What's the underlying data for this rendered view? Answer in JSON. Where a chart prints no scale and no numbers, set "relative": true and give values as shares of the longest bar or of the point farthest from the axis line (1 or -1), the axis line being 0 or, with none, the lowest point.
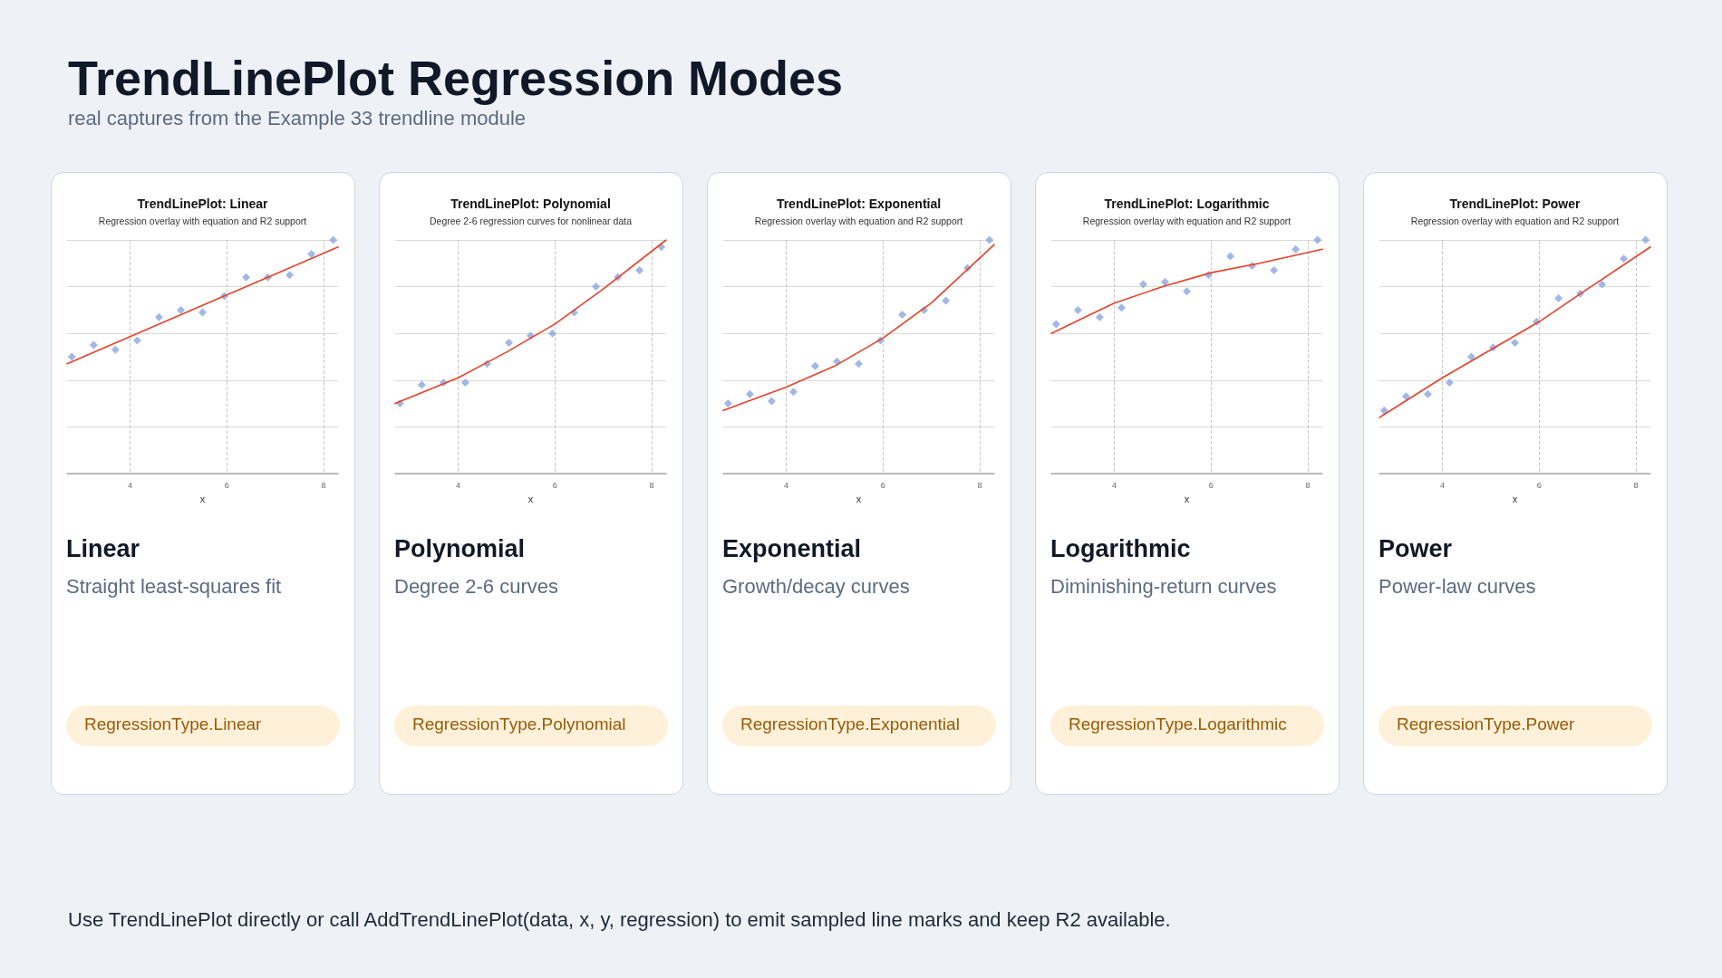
{
  "chart_data": [
    {
      "type": "other",
      "title": "TrendLinePlot Regression Modes",
      "subtitle": "real captures from the Example 33 trendline module",
      "annotations": [
        "Use TrendLinePlot directly or call AddTrendLinePlot(data, x, y, regression) to emit sampled line marks and keep R2 available."
      ]
    },
    {
      "type": "scatter",
      "title": "TrendLinePlot: Linear",
      "subtitle": "Regression overlay with equation and R2 support",
      "xlabel": "x",
      "relative": true,
      "xlim": [
        2.7,
        8.3
      ],
      "xticks": [
        4,
        6,
        8
      ],
      "grid": true,
      "x": [
        2.8,
        3.25,
        3.7,
        4.15,
        4.6,
        5.05,
        5.5,
        5.95,
        6.4,
        6.85,
        7.3,
        7.75,
        8.2
      ],
      "series": [
        {
          "color": "#8aa5e0",
          "marker": "diamond",
          "values": [
            0.5,
            0.55,
            0.53,
            0.57,
            0.67,
            0.7,
            0.69,
            0.76,
            0.84,
            0.84,
            0.85,
            0.94,
            1
          ]
        },
        {
          "type": "line",
          "color": "#e8402a",
          "marker": "none",
          "line_style": "solid",
          "x": [
            2.7,
            8.3
          ],
          "values": [
            0.47,
            0.97
          ]
        }
      ],
      "annotations": [
        "Linear",
        "Straight least-squares fit",
        "RegressionType.Linear"
      ]
    },
    {
      "type": "scatter",
      "title": "TrendLinePlot: Polynomial",
      "subtitle": "Degree 2-6 regression curves for nonlinear data",
      "xlabel": "x",
      "relative": true,
      "xlim": [
        2.7,
        8.3
      ],
      "xticks": [
        4,
        6,
        8
      ],
      "grid": true,
      "x": [
        2.8,
        3.25,
        3.7,
        4.15,
        4.6,
        5.05,
        5.5,
        5.95,
        6.4,
        6.85,
        7.3,
        7.75,
        8.2
      ],
      "series": [
        {
          "color": "#8aa5e0",
          "marker": "diamond",
          "values": [
            0.3,
            0.38,
            0.39,
            0.39,
            0.47,
            0.56,
            0.59,
            0.6,
            0.69,
            0.8,
            0.84,
            0.87,
            0.97
          ]
        },
        {
          "type": "line",
          "color": "#e8402a",
          "marker": "none",
          "line_style": "solid",
          "x": [
            2.7,
            4,
            5,
            6,
            7,
            8.3
          ],
          "values": [
            0.3,
            0.41,
            0.52,
            0.64,
            0.79,
            1
          ]
        }
      ],
      "annotations": [
        "Polynomial",
        "Degree 2-6 curves",
        "RegressionType.Polynomial"
      ]
    },
    {
      "type": "scatter",
      "title": "TrendLinePlot: Exponential",
      "subtitle": "Regression overlay with equation and R2 support",
      "xlabel": "x",
      "relative": true,
      "xlim": [
        2.7,
        8.3
      ],
      "xticks": [
        4,
        6,
        8
      ],
      "grid": true,
      "x": [
        2.8,
        3.25,
        3.7,
        4.15,
        4.6,
        5.05,
        5.5,
        5.95,
        6.4,
        6.85,
        7.3,
        7.75,
        8.2
      ],
      "series": [
        {
          "color": "#8aa5e0",
          "marker": "diamond",
          "values": [
            0.3,
            0.34,
            0.31,
            0.35,
            0.46,
            0.48,
            0.47,
            0.57,
            0.68,
            0.7,
            0.74,
            0.88,
            1
          ]
        },
        {
          "type": "line",
          "color": "#e8402a",
          "marker": "none",
          "line_style": "solid",
          "x": [
            2.7,
            4,
            5,
            6,
            7,
            8.3
          ],
          "values": [
            0.27,
            0.37,
            0.46,
            0.58,
            0.73,
            0.98
          ]
        }
      ],
      "annotations": [
        "Exponential",
        "Growth/decay curves",
        "RegressionType.Exponential"
      ]
    },
    {
      "type": "scatter",
      "title": "TrendLinePlot: Logarithmic",
      "subtitle": "Regression overlay with equation and R2 support",
      "xlabel": "x",
      "relative": true,
      "xlim": [
        2.7,
        8.3
      ],
      "xticks": [
        4,
        6,
        8
      ],
      "grid": true,
      "x": [
        2.8,
        3.25,
        3.7,
        4.15,
        4.6,
        5.05,
        5.5,
        5.95,
        6.4,
        6.85,
        7.3,
        7.75,
        8.2
      ],
      "series": [
        {
          "color": "#8aa5e0",
          "marker": "diamond",
          "values": [
            0.64,
            0.7,
            0.67,
            0.71,
            0.81,
            0.82,
            0.78,
            0.85,
            0.93,
            0.89,
            0.87,
            0.96,
            1
          ]
        },
        {
          "type": "line",
          "color": "#e8402a",
          "marker": "none",
          "line_style": "solid",
          "x": [
            2.7,
            3.5,
            4,
            5,
            6,
            7,
            8.3
          ],
          "values": [
            0.6,
            0.68,
            0.73,
            0.8,
            0.86,
            0.9,
            0.96
          ]
        }
      ],
      "annotations": [
        "Logarithmic",
        "Diminishing-return curves",
        "RegressionType.Logarithmic"
      ]
    },
    {
      "type": "scatter",
      "title": "TrendLinePlot: Power",
      "subtitle": "Regression overlay with equation and R2 support",
      "xlabel": "x",
      "relative": true,
      "xlim": [
        2.7,
        8.3
      ],
      "xticks": [
        4,
        6,
        8
      ],
      "grid": true,
      "x": [
        2.8,
        3.25,
        3.7,
        4.15,
        4.6,
        5.05,
        5.5,
        5.95,
        6.4,
        6.85,
        7.3,
        7.75,
        8.2
      ],
      "series": [
        {
          "color": "#8aa5e0",
          "marker": "diamond",
          "values": [
            0.27,
            0.33,
            0.34,
            0.39,
            0.5,
            0.54,
            0.56,
            0.65,
            0.75,
            0.77,
            0.81,
            0.92,
            1
          ]
        },
        {
          "type": "line",
          "color": "#e8402a",
          "marker": "none",
          "line_style": "solid",
          "x": [
            2.7,
            4,
            5,
            6,
            7,
            8.3
          ],
          "values": [
            0.24,
            0.41,
            0.53,
            0.65,
            0.79,
            0.97
          ]
        }
      ],
      "annotations": [
        "Power",
        "Power-law curves",
        "RegressionType.Power"
      ]
    }
  ]
}
